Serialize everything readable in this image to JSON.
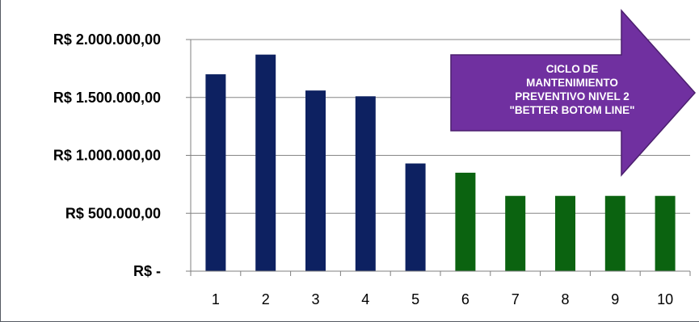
{
  "chart_data": {
    "type": "bar",
    "categories": [
      "1",
      "2",
      "3",
      "4",
      "5",
      "6",
      "7",
      "8",
      "9",
      "10"
    ],
    "values": [
      1700000,
      1870000,
      1560000,
      1510000,
      930000,
      850000,
      650000,
      650000,
      650000,
      650000
    ],
    "bar_colors": [
      "#0d2161",
      "#0d2161",
      "#0d2161",
      "#0d2161",
      "#0d2161",
      "#0b6310",
      "#0b6310",
      "#0b6310",
      "#0b6310",
      "#0b6310"
    ],
    "ylim": [
      0,
      2000000
    ],
    "yticks": [
      0,
      500000,
      1000000,
      1500000,
      2000000
    ],
    "ytick_labels": [
      "R$ -",
      "R$ 500.000,00",
      "R$ 1.000.000,00",
      "R$ 1.500.000,00",
      "R$ 2.000.000,00"
    ],
    "grid": true,
    "title": "",
    "xlabel": "",
    "ylabel": ""
  },
  "annotation": {
    "shape": "right-arrow",
    "color": "#7030a0",
    "lines": [
      "CICLO DE",
      "MANTENIMIENTO",
      "PREVENTIVO NIVEL 2",
      "\"BETTER BOTOM LINE\""
    ]
  },
  "colors": {
    "axis": "#7f7f7f",
    "grid": "#868686",
    "navy": "#0d2161",
    "green": "#0b6310"
  }
}
